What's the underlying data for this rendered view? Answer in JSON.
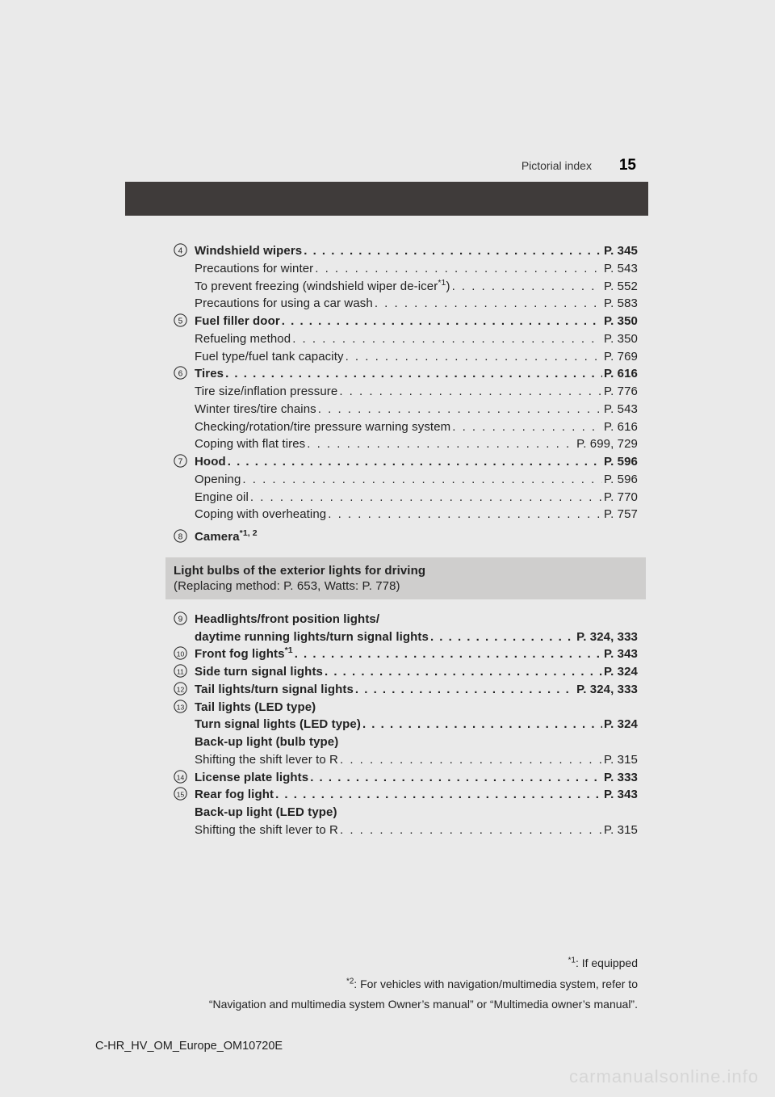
{
  "colors": {
    "page_bg": "#eaeaea",
    "dark_strip": "#3f3b3a",
    "section_bg": "#cfcecd",
    "text": "#222222",
    "watermark": "#d6d6d6"
  },
  "typography": {
    "body_font": "Arial",
    "body_size_pt": 11,
    "header_page_size_pt": 14,
    "watermark_size_pt": 16
  },
  "header": {
    "section_label": "Pictorial index",
    "page_number": "15"
  },
  "entries_top": [
    {
      "num": "4",
      "title": "Windshield wipers",
      "page": "P. 345",
      "subs": [
        {
          "label": "Precautions for winter",
          "page": "P. 543"
        },
        {
          "label": "To prevent freezing (windshield wiper de-icer*1)",
          "page": "P. 552",
          "sup_after": "*1",
          "label_plain": "To prevent freezing (windshield wiper de-icer",
          "label_tail": ")"
        },
        {
          "label": "Precautions for using a car wash",
          "page": "P. 583"
        }
      ]
    },
    {
      "num": "5",
      "title": "Fuel filler door",
      "page": "P. 350",
      "subs": [
        {
          "label": "Refueling method",
          "page": "P. 350"
        },
        {
          "label": "Fuel type/fuel tank capacity",
          "page": "P. 769"
        }
      ]
    },
    {
      "num": "6",
      "title": "Tires",
      "page": "P. 616",
      "subs": [
        {
          "label": "Tire size/inflation pressure",
          "page": "P. 776"
        },
        {
          "label": "Winter tires/tire chains",
          "page": "P. 543"
        },
        {
          "label": "Checking/rotation/tire pressure warning system",
          "page": "P. 616"
        },
        {
          "label": "Coping with flat tires",
          "page": "P. 699, 729"
        }
      ]
    },
    {
      "num": "7",
      "title": "Hood",
      "page": "P. 596",
      "subs": [
        {
          "label": "Opening",
          "page": "P. 596"
        },
        {
          "label": "Engine oil",
          "page": "P. 770"
        },
        {
          "label": "Coping with overheating",
          "page": "P. 757"
        }
      ]
    }
  ],
  "camera": {
    "num": "8",
    "title_pre": "Camera",
    "title_sup": "*1, 2"
  },
  "section_box": {
    "line1": "Light bulbs of the exterior lights for driving",
    "line2": "(Replacing method: P. 653, Watts: P. 778)"
  },
  "entries_bottom": [
    {
      "num": "9",
      "title_lines": [
        "Headlights/front position lights/",
        "daytime running lights/turn signal lights"
      ],
      "page": "P. 324, 333"
    },
    {
      "num": "10",
      "title_pre": "Front fog lights",
      "title_sup": "*1",
      "page": "P. 343"
    },
    {
      "num": "11",
      "title": "Side turn signal lights",
      "page": "P. 324"
    },
    {
      "num": "12",
      "title": "Tail lights/turn signal lights",
      "page": "P. 324, 333"
    },
    {
      "num": "13",
      "title_nopage": "Tail lights (LED type)",
      "bold_subs": [
        {
          "label": "Turn signal lights (LED type)",
          "page": "P. 324"
        },
        {
          "label_nopage": "Back-up light (bulb type)"
        }
      ],
      "subs": [
        {
          "label": "Shifting the shift lever to R",
          "page": "P. 315"
        }
      ]
    },
    {
      "num": "14",
      "title": "License plate lights",
      "page": "P. 333"
    },
    {
      "num": "15",
      "title": "Rear fog light",
      "page": "P. 343",
      "bold_subs": [
        {
          "label_nopage": "Back-up light (LED type)"
        }
      ],
      "subs": [
        {
          "label": "Shifting the shift lever to R",
          "page": "P. 315"
        }
      ]
    }
  ],
  "footnotes": {
    "n1_sup": "*1",
    "n1_text": ": If equipped",
    "n2_sup": "*2",
    "n2_text": ": For vehicles with navigation/multimedia system, refer to",
    "n3_text": "“Navigation and multimedia system Owner’s manual” or “Multimedia owner’s manual”."
  },
  "footer": "C-HR_HV_OM_Europe_OM10720E",
  "watermark": "carmanualsonline.info"
}
